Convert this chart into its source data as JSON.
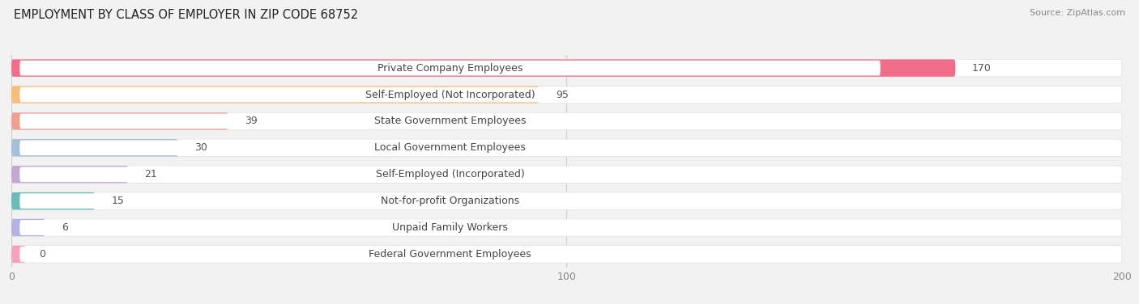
{
  "title": "EMPLOYMENT BY CLASS OF EMPLOYER IN ZIP CODE 68752",
  "source": "Source: ZipAtlas.com",
  "categories": [
    "Private Company Employees",
    "Self-Employed (Not Incorporated)",
    "State Government Employees",
    "Local Government Employees",
    "Self-Employed (Incorporated)",
    "Not-for-profit Organizations",
    "Unpaid Family Workers",
    "Federal Government Employees"
  ],
  "values": [
    170,
    95,
    39,
    30,
    21,
    15,
    6,
    0
  ],
  "bar_colors": [
    "#F26D8A",
    "#F9BC7A",
    "#EFA090",
    "#A4BEDC",
    "#C4A8D4",
    "#6ABCB8",
    "#B4B4E4",
    "#F4A4B8"
  ],
  "xlim": [
    0,
    200
  ],
  "xticks": [
    0,
    100,
    200
  ],
  "bg_color": "#f2f2f2",
  "row_bg_color": "#ffffff",
  "title_fontsize": 10.5,
  "label_fontsize": 9,
  "value_fontsize": 9,
  "tick_fontsize": 9,
  "source_fontsize": 8
}
